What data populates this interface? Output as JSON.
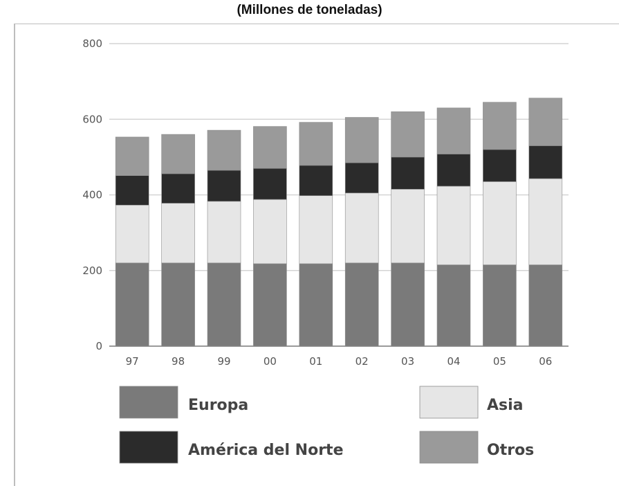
{
  "chart_data": {
    "type": "bar",
    "stacked": true,
    "title": "(Millones de toneladas)",
    "categories": [
      "97",
      "98",
      "99",
      "00",
      "01",
      "02",
      "03",
      "04",
      "05",
      "06"
    ],
    "series": [
      {
        "name": "Europa",
        "color": "#7a7a7a",
        "values": [
          220,
          220,
          220,
          218,
          218,
          220,
          220,
          215,
          215,
          215
        ]
      },
      {
        "name": "Asia",
        "color": "#e6e6e6",
        "values": [
          153,
          158,
          163,
          170,
          180,
          185,
          195,
          208,
          220,
          228
        ]
      },
      {
        "name": "América del Norte",
        "color": "#2b2b2b",
        "values": [
          78,
          78,
          82,
          82,
          80,
          80,
          85,
          85,
          85,
          87
        ]
      },
      {
        "name": "Otros",
        "color": "#9a9a9a",
        "values": [
          102,
          104,
          106,
          111,
          114,
          120,
          120,
          122,
          125,
          126
        ]
      }
    ],
    "y_ticks": [
      "0",
      "200",
      "400",
      "600",
      "800"
    ],
    "ylim": [
      0,
      800
    ],
    "grid": true,
    "legend": "bottom"
  }
}
